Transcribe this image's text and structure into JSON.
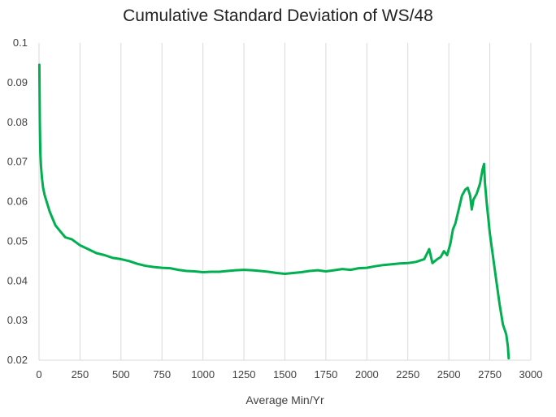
{
  "chart_data": {
    "type": "line",
    "title": "Cumulative Standard Deviation of WS/48",
    "xlabel": "Average Min/Yr",
    "ylabel": "",
    "xlim": [
      0,
      3000
    ],
    "ylim": [
      0.02,
      0.1
    ],
    "xticks": [
      0,
      250,
      500,
      750,
      1000,
      1250,
      1500,
      1750,
      2000,
      2250,
      2500,
      2750,
      3000
    ],
    "xtick_labels": [
      "0",
      "250",
      "500",
      "750",
      "1000",
      "1250",
      "1500",
      "1750",
      "2000",
      "2250",
      "2500",
      "2750",
      "3000"
    ],
    "yticks": [
      0.02,
      0.03,
      0.04,
      0.05,
      0.06,
      0.07,
      0.08,
      0.09,
      0.1
    ],
    "ytick_labels": [
      "0.02",
      "0.03",
      "0.04",
      "0.05",
      "0.06",
      "0.07",
      "0.08",
      "0.09",
      "0.1"
    ],
    "grid": "vertical",
    "legend": "none",
    "colors": {
      "series": "#00b050",
      "grid": "#d9d9d9"
    },
    "series": [
      {
        "x": [
          2,
          5,
          8,
          12,
          18,
          25,
          35,
          50,
          65,
          80,
          100,
          130,
          160,
          200,
          250,
          300,
          350,
          400,
          450,
          500,
          550,
          600,
          650,
          700,
          750,
          800,
          850,
          900,
          950,
          1000,
          1050,
          1100,
          1150,
          1200,
          1250,
          1300,
          1350,
          1400,
          1450,
          1500,
          1550,
          1600,
          1650,
          1700,
          1750,
          1800,
          1850,
          1900,
          1950,
          2000,
          2050,
          2100,
          2150,
          2200,
          2250,
          2300,
          2350,
          2380,
          2400,
          2430,
          2450,
          2470,
          2490,
          2510,
          2525,
          2540,
          2560,
          2580,
          2600,
          2615,
          2630,
          2640,
          2650,
          2670,
          2690,
          2705,
          2715,
          2720,
          2730,
          2750,
          2770,
          2790,
          2810,
          2830,
          2850,
          2860,
          2865
        ],
        "y": [
          0.0945,
          0.08,
          0.0725,
          0.069,
          0.066,
          0.0635,
          0.0615,
          0.0595,
          0.0575,
          0.056,
          0.054,
          0.0525,
          0.051,
          0.0505,
          0.049,
          0.048,
          0.047,
          0.0465,
          0.0458,
          0.0455,
          0.045,
          0.0443,
          0.0438,
          0.0435,
          0.0433,
          0.0432,
          0.0428,
          0.0425,
          0.0424,
          0.0422,
          0.0423,
          0.0423,
          0.0425,
          0.0427,
          0.0428,
          0.0427,
          0.0425,
          0.0423,
          0.042,
          0.0418,
          0.042,
          0.0422,
          0.0425,
          0.0427,
          0.0424,
          0.0427,
          0.043,
          0.0428,
          0.0432,
          0.0433,
          0.0437,
          0.044,
          0.0442,
          0.0444,
          0.0445,
          0.0448,
          0.0455,
          0.048,
          0.0445,
          0.0455,
          0.046,
          0.0475,
          0.0465,
          0.0495,
          0.053,
          0.0545,
          0.058,
          0.0615,
          0.063,
          0.0635,
          0.0615,
          0.058,
          0.0605,
          0.062,
          0.0645,
          0.068,
          0.0695,
          0.065,
          0.06,
          0.052,
          0.046,
          0.04,
          0.034,
          0.029,
          0.0265,
          0.0235,
          0.0205
        ]
      }
    ]
  }
}
